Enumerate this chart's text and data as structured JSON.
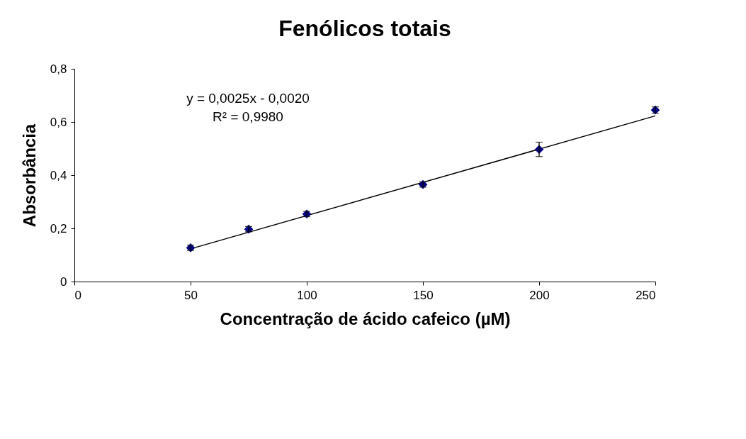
{
  "chart_data": {
    "type": "scatter",
    "title": "Fenólicos totais",
    "xlabel": "Concentração de ácido cafeico (µM)",
    "ylabel": "Absorbância",
    "xlim": [
      0,
      250
    ],
    "xticks": [
      0,
      50,
      100,
      150,
      200,
      250
    ],
    "ylim": [
      0,
      0.8
    ],
    "yticks": [
      0,
      {
        "value": 0.2,
        "label": "0,2"
      },
      {
        "value": 0.4,
        "label": "0,4"
      },
      {
        "value": 0.6,
        "label": "0,6"
      },
      {
        "value": 0.8,
        "label": "0,8"
      }
    ],
    "grid": false,
    "annotations": [
      "y = 0,0025x - 0,0020",
      "R² = 0,9980"
    ],
    "series": [
      {
        "color": "#000080",
        "marker": "diamond",
        "x": [
          50,
          75,
          100,
          150,
          200,
          250
        ],
        "values": [
          0.127,
          0.197,
          0.254,
          0.365,
          0.497,
          0.645
        ],
        "errors": [
          0.01,
          0.01,
          0.01,
          0.01,
          0.027,
          0.012
        ]
      },
      {
        "type": "line",
        "color": "#000000",
        "line_style": "solid",
        "x": [
          50,
          250
        ],
        "values": [
          0.123,
          0.623
        ]
      }
    ]
  }
}
